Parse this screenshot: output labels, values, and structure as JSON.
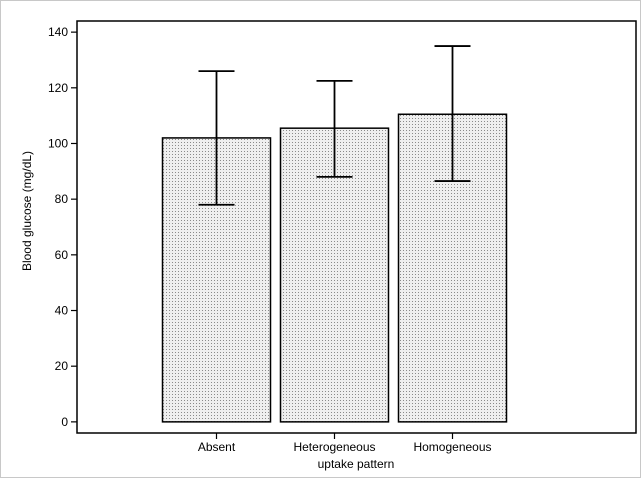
{
  "chart_data": {
    "type": "bar",
    "title": "",
    "xlabel": "uptake pattern",
    "ylabel": "Blood glucose (mg/dL)",
    "categories": [
      "Absent",
      "Heterogeneous",
      "Homogeneous"
    ],
    "values": [
      102,
      105.5,
      110.5
    ],
    "error_bars": {
      "lower": [
        78,
        88,
        86.5
      ],
      "upper": [
        126,
        122.5,
        135
      ]
    },
    "ylim": [
      -4,
      144
    ],
    "yticks": [
      0,
      20,
      40,
      60,
      80,
      100,
      120,
      140
    ],
    "grid": false,
    "bar_fill": "dotted light gray",
    "colors": {
      "bar_fill": "#e6e6e6",
      "bar_dots": "#8a8a8a",
      "stroke": "#000000",
      "frame": "#a0a0a0"
    }
  }
}
